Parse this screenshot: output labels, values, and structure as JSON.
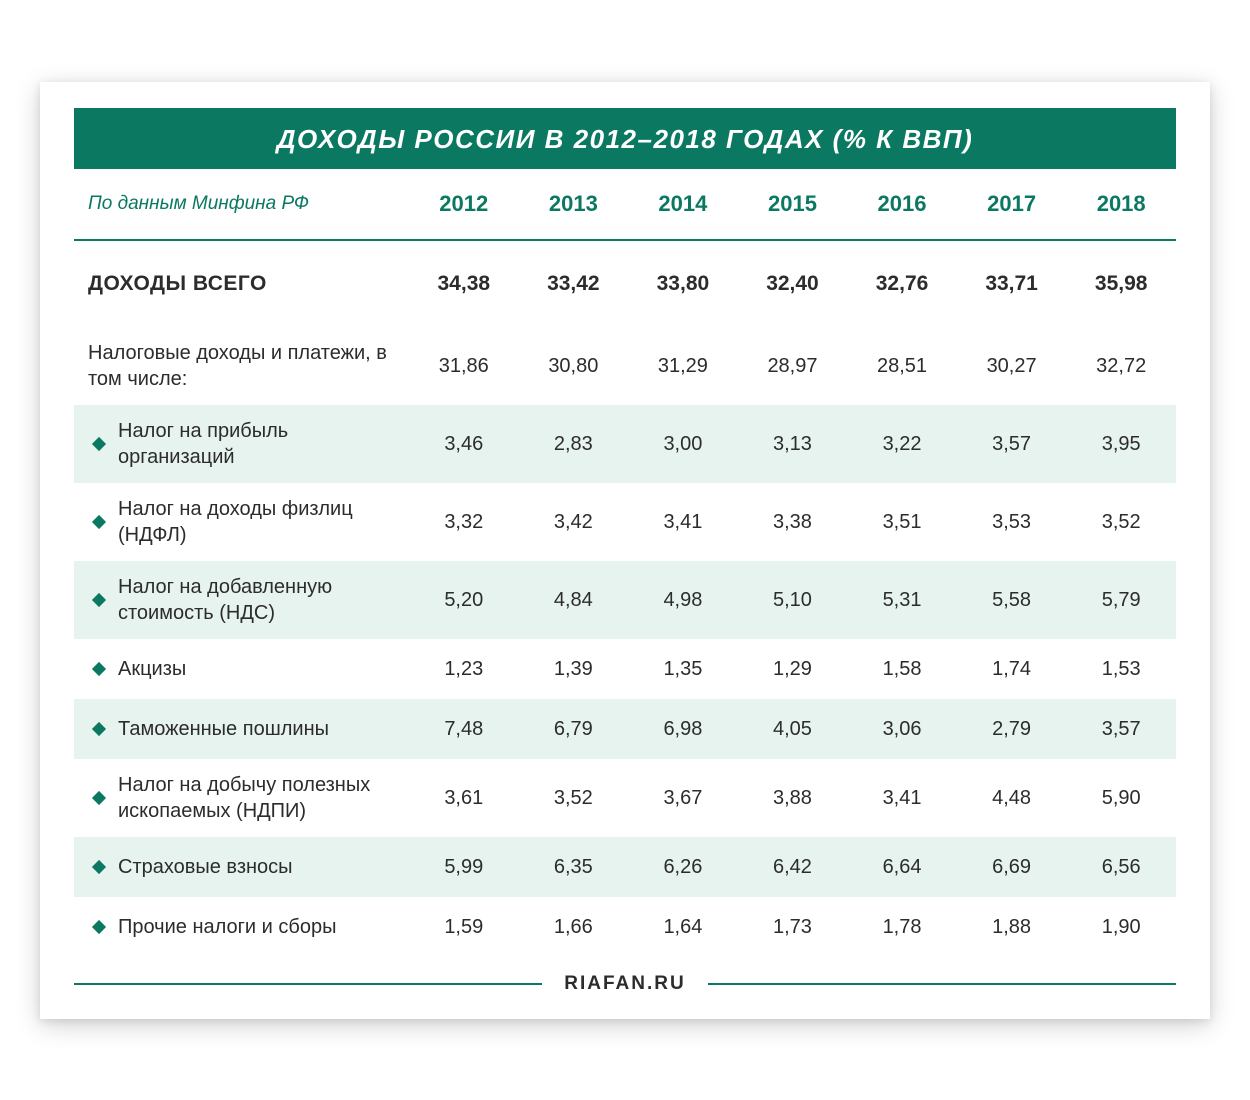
{
  "type": "table",
  "title": "ДОХОДЫ РОССИИ В 2012–2018 ГОДАХ (% К ВВП)",
  "subtitle": "По данным Минфина РФ",
  "source": "RIAFAN.RU",
  "colors": {
    "accent": "#0b7862",
    "shaded_row": "#e7f3ef",
    "text": "#2c2c2c",
    "background": "#ffffff"
  },
  "typography": {
    "title_fontsize": 26,
    "header_fontsize": 22,
    "subtitle_fontsize": 19,
    "body_fontsize": 20,
    "total_fontsize": 21,
    "source_fontsize": 19
  },
  "columns": [
    "2012",
    "2013",
    "2014",
    "2015",
    "2016",
    "2017",
    "2018"
  ],
  "total_row": {
    "label": "ДОХОДЫ ВСЕГО",
    "values": [
      "34,38",
      "33,42",
      "33,80",
      "32,40",
      "32,76",
      "33,71",
      "35,98"
    ]
  },
  "rows": [
    {
      "label": "Налоговые доходы и платежи, в том числе:",
      "bullet": false,
      "shaded": false,
      "values": [
        "31,86",
        "30,80",
        "31,29",
        "28,97",
        "28,51",
        "30,27",
        "32,72"
      ]
    },
    {
      "label": "Налог на прибыль организаций",
      "bullet": true,
      "shaded": true,
      "values": [
        "3,46",
        "2,83",
        "3,00",
        "3,13",
        "3,22",
        "3,57",
        "3,95"
      ]
    },
    {
      "label": "Налог на доходы физлиц (НДФЛ)",
      "bullet": true,
      "shaded": false,
      "values": [
        "3,32",
        "3,42",
        "3,41",
        "3,38",
        "3,51",
        "3,53",
        "3,52"
      ]
    },
    {
      "label": "Налог на добавленную стоимость (НДС)",
      "bullet": true,
      "shaded": true,
      "values": [
        "5,20",
        "4,84",
        "4,98",
        "5,10",
        "5,31",
        "5,58",
        "5,79"
      ]
    },
    {
      "label": "Акцизы",
      "bullet": true,
      "shaded": false,
      "short": true,
      "values": [
        "1,23",
        "1,39",
        "1,35",
        "1,29",
        "1,58",
        "1,74",
        "1,53"
      ]
    },
    {
      "label": "Таможенные пошлины",
      "bullet": true,
      "shaded": true,
      "short": true,
      "values": [
        "7,48",
        "6,79",
        "6,98",
        "4,05",
        "3,06",
        "2,79",
        "3,57"
      ]
    },
    {
      "label": "Налог на добычу полезных ископаемых (НДПИ)",
      "bullet": true,
      "shaded": false,
      "values": [
        "3,61",
        "3,52",
        "3,67",
        "3,88",
        "3,41",
        "4,48",
        "5,90"
      ]
    },
    {
      "label": "Страховые взносы",
      "bullet": true,
      "shaded": true,
      "short": true,
      "values": [
        "5,99",
        "6,35",
        "6,26",
        "6,42",
        "6,64",
        "6,69",
        "6,56"
      ]
    },
    {
      "label": "Прочие налоги и сборы",
      "bullet": true,
      "shaded": false,
      "short": true,
      "values": [
        "1,59",
        "1,66",
        "1,64",
        "1,73",
        "1,78",
        "1,88",
        "1,90"
      ]
    }
  ]
}
